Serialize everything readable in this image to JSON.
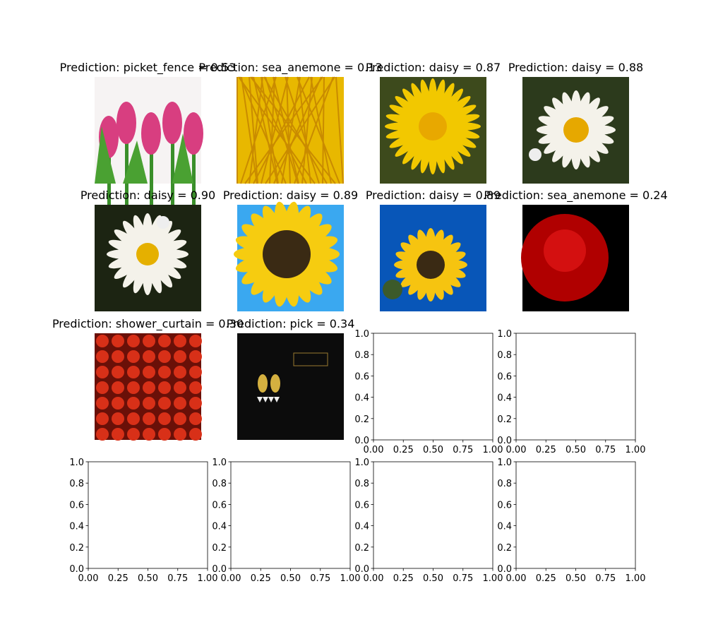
{
  "panels": [
    {
      "title": "Prediction: picket_fence = 0.53"
    },
    {
      "title": "Prediction: sea_anemone = 0.13"
    },
    {
      "title": "Prediction: daisy = 0.87"
    },
    {
      "title": "Prediction: daisy = 0.88"
    },
    {
      "title": "Prediction: daisy = 0.90"
    },
    {
      "title": "Prediction: daisy = 0.89"
    },
    {
      "title": "Prediction: daisy = 0.89"
    },
    {
      "title": "Prediction: sea_anemone = 0.24"
    },
    {
      "title": "Prediction: shower_curtain = 0.30"
    },
    {
      "title": "Prediction: pick = 0.34"
    },
    {
      "xlim": [
        0,
        1
      ],
      "ylim": [
        0,
        1
      ],
      "xticks": [
        {
          "value": 0,
          "label": "0.00"
        },
        {
          "value": 0.25,
          "label": "0.25"
        },
        {
          "value": 0.5,
          "label": "0.50"
        },
        {
          "value": 0.75,
          "label": "0.75"
        },
        {
          "value": 1,
          "label": "1.00"
        }
      ],
      "yticks": [
        {
          "value": 0,
          "label": "0.0"
        },
        {
          "value": 0.2,
          "label": "0.2"
        },
        {
          "value": 0.4,
          "label": "0.4"
        },
        {
          "value": 0.6,
          "label": "0.6"
        },
        {
          "value": 0.8,
          "label": "0.8"
        },
        {
          "value": 1,
          "label": "1.0"
        }
      ]
    },
    {
      "xlim": [
        0,
        1
      ],
      "ylim": [
        0,
        1
      ],
      "xticks": [
        {
          "value": 0,
          "label": "0.00"
        },
        {
          "value": 0.25,
          "label": "0.25"
        },
        {
          "value": 0.5,
          "label": "0.50"
        },
        {
          "value": 0.75,
          "label": "0.75"
        },
        {
          "value": 1,
          "label": "1.00"
        }
      ],
      "yticks": [
        {
          "value": 0,
          "label": "0.0"
        },
        {
          "value": 0.2,
          "label": "0.2"
        },
        {
          "value": 0.4,
          "label": "0.4"
        },
        {
          "value": 0.6,
          "label": "0.6"
        },
        {
          "value": 0.8,
          "label": "0.8"
        },
        {
          "value": 1,
          "label": "1.0"
        }
      ]
    },
    {
      "xlim": [
        0,
        1
      ],
      "ylim": [
        0,
        1
      ],
      "xticks": [
        {
          "value": 0,
          "label": "0.00"
        },
        {
          "value": 0.25,
          "label": "0.25"
        },
        {
          "value": 0.5,
          "label": "0.50"
        },
        {
          "value": 0.75,
          "label": "0.75"
        },
        {
          "value": 1,
          "label": "1.00"
        }
      ],
      "yticks": [
        {
          "value": 0,
          "label": "0.0"
        },
        {
          "value": 0.2,
          "label": "0.2"
        },
        {
          "value": 0.4,
          "label": "0.4"
        },
        {
          "value": 0.6,
          "label": "0.6"
        },
        {
          "value": 0.8,
          "label": "0.8"
        },
        {
          "value": 1,
          "label": "1.0"
        }
      ]
    },
    {
      "xlim": [
        0,
        1
      ],
      "ylim": [
        0,
        1
      ],
      "xticks": [
        {
          "value": 0,
          "label": "0.00"
        },
        {
          "value": 0.25,
          "label": "0.25"
        },
        {
          "value": 0.5,
          "label": "0.50"
        },
        {
          "value": 0.75,
          "label": "0.75"
        },
        {
          "value": 1,
          "label": "1.00"
        }
      ],
      "yticks": [
        {
          "value": 0,
          "label": "0.0"
        },
        {
          "value": 0.2,
          "label": "0.2"
        },
        {
          "value": 0.4,
          "label": "0.4"
        },
        {
          "value": 0.6,
          "label": "0.6"
        },
        {
          "value": 0.8,
          "label": "0.8"
        },
        {
          "value": 1,
          "label": "1.0"
        }
      ]
    },
    {
      "xlim": [
        0,
        1
      ],
      "ylim": [
        0,
        1
      ],
      "xticks": [
        {
          "value": 0,
          "label": "0.00"
        },
        {
          "value": 0.25,
          "label": "0.25"
        },
        {
          "value": 0.5,
          "label": "0.50"
        },
        {
          "value": 0.75,
          "label": "0.75"
        },
        {
          "value": 1,
          "label": "1.00"
        }
      ],
      "yticks": [
        {
          "value": 0,
          "label": "0.0"
        },
        {
          "value": 0.2,
          "label": "0.2"
        },
        {
          "value": 0.4,
          "label": "0.4"
        },
        {
          "value": 0.6,
          "label": "0.6"
        },
        {
          "value": 0.8,
          "label": "0.8"
        },
        {
          "value": 1,
          "label": "1.0"
        }
      ]
    },
    {
      "xlim": [
        0,
        1
      ],
      "ylim": [
        0,
        1
      ],
      "xticks": [
        {
          "value": 0,
          "label": "0.00"
        },
        {
          "value": 0.25,
          "label": "0.25"
        },
        {
          "value": 0.5,
          "label": "0.50"
        },
        {
          "value": 0.75,
          "label": "0.75"
        },
        {
          "value": 1,
          "label": "1.00"
        }
      ],
      "yticks": [
        {
          "value": 0,
          "label": "0.0"
        },
        {
          "value": 0.2,
          "label": "0.2"
        },
        {
          "value": 0.4,
          "label": "0.4"
        },
        {
          "value": 0.6,
          "label": "0.6"
        },
        {
          "value": 0.8,
          "label": "0.8"
        },
        {
          "value": 1,
          "label": "1.0"
        }
      ]
    }
  ]
}
